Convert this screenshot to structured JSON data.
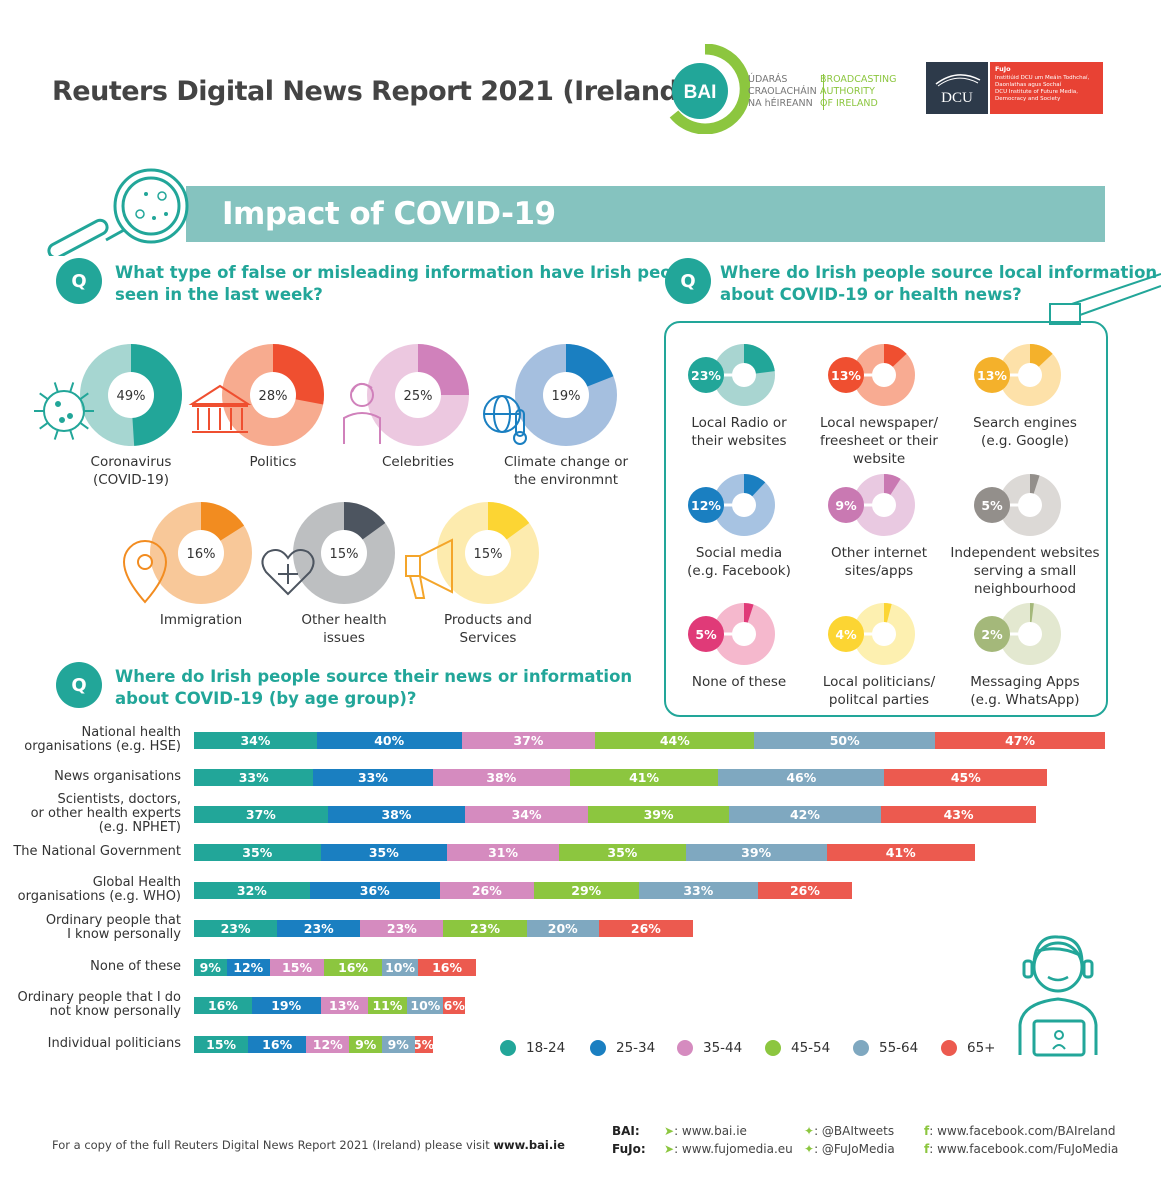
{
  "header": {
    "title": "Reuters Digital News Report 2021 (Ireland)",
    "bai_badge": "BAI",
    "bai_irish": [
      "ÚDARÁS",
      "CRAOLACHÁIN",
      "NA hÉIREANN"
    ],
    "bai_english": [
      "BROADCASTING",
      "AUTHORITY",
      "OF IRELAND"
    ],
    "dcu_label": "DCU",
    "fujo_title": "FuJo",
    "fujo_lines": [
      "Institiúid DCU um Meáin Todhchaí,",
      "Daonlathas agus Sochaí",
      "DCU Institute of Future Media,",
      "Democracy and Society"
    ]
  },
  "banner": {
    "title": "Impact of COVID-19"
  },
  "q1": {
    "badge": "Q",
    "question": [
      "What type of false or misleading information have Irish people",
      "seen in the last week?"
    ]
  },
  "q2": {
    "badge": "Q",
    "question": [
      "Where do Irish people source local information",
      "about COVID-19 or health news?"
    ]
  },
  "q3": {
    "badge": "Q",
    "question": [
      "Where do Irish people source their news or information",
      "about COVID-19 (by age group)?"
    ]
  },
  "colors": {
    "teal": "#22a699",
    "blue": "#1a7fc1",
    "pink": "#d58bbf",
    "green": "#8cc63f",
    "greyblue": "#7fa8c0",
    "red": "#ec5a4f",
    "banner": "#85c3bf"
  },
  "chart_data": [
    {
      "type": "pie",
      "title": "What type of false or misleading information have Irish people seen in the last week?",
      "items": [
        {
          "label": [
            "Coronavirus",
            "(COVID-19)"
          ],
          "value": 49,
          "display": "49%",
          "color": "#22a699",
          "light": "#a6d6d1",
          "icon": "virus-icon"
        },
        {
          "label": [
            "Politics"
          ],
          "value": 28,
          "display": "28%",
          "color": "#ef4f30",
          "light": "#f7ab8f",
          "icon": "government-building-icon"
        },
        {
          "label": [
            "Celebrities"
          ],
          "value": 25,
          "display": "25%",
          "color": "#d081bb",
          "light": "#ecc8e0",
          "icon": "person-icon"
        },
        {
          "label": [
            "Climate change or",
            "the environmnt"
          ],
          "value": 19,
          "display": "19%",
          "color": "#1a7fc1",
          "light": "#a5bfdf",
          "icon": "globe-thermometer-icon"
        },
        {
          "label": [
            "Immigration"
          ],
          "value": 16,
          "display": "16%",
          "color": "#f28c20",
          "light": "#f8c899",
          "icon": "location-pin-icon"
        },
        {
          "label": [
            "Other health",
            "issues"
          ],
          "value": 15,
          "display": "15%",
          "color": "#4d5560",
          "light": "#bdbfc1",
          "icon": "heart-plus-icon"
        },
        {
          "label": [
            "Products and",
            "Services"
          ],
          "value": 15,
          "display": "15%",
          "color": "#fcd533",
          "light": "#fdebae",
          "icon": "megaphone-icon"
        }
      ]
    },
    {
      "type": "pie",
      "title": "Where do Irish people source local information about COVID-19 or health news?",
      "items": [
        {
          "label": [
            "Local Radio or",
            "their websites"
          ],
          "value": 23,
          "display": "23%",
          "color": "#22a699",
          "light": "#a9d5d1"
        },
        {
          "label": [
            "Local newspaper/",
            "freesheet or their",
            "website"
          ],
          "value": 13,
          "display": "13%",
          "color": "#ef4f30",
          "light": "#f8ab92"
        },
        {
          "label": [
            "Search engines",
            "(e.g. Google)"
          ],
          "value": 13,
          "display": "13%",
          "color": "#f4b12b",
          "light": "#fde1a9"
        },
        {
          "label": [
            "Social media",
            "(e.g. Facebook)"
          ],
          "value": 12,
          "display": "12%",
          "color": "#1a7fc1",
          "light": "#a7c3e2"
        },
        {
          "label": [
            "Other internet",
            "sites/apps"
          ],
          "value": 9,
          "display": "9%",
          "color": "#c979b2",
          "light": "#e9c9e1"
        },
        {
          "label": [
            "Independent websites",
            "serving a small",
            "neighbourhood"
          ],
          "value": 5,
          "display": "5%",
          "color": "#938f8b",
          "light": "#dcd9d6"
        },
        {
          "label": [
            "None of these"
          ],
          "value": 5,
          "display": "5%",
          "color": "#e03a78",
          "light": "#f5b8cd"
        },
        {
          "label": [
            "Local politicians/",
            "politcal parties"
          ],
          "value": 4,
          "display": "4%",
          "color": "#fcd533",
          "light": "#fdf0b0"
        },
        {
          "label": [
            "Messaging Apps",
            "(e.g. WhatsApp)"
          ],
          "value": 2,
          "display": "2%",
          "color": "#a4b87a",
          "light": "#e3e8d0"
        }
      ]
    },
    {
      "type": "bar",
      "stacked": true,
      "title": "Where do Irish people source their news or information about COVID-19 (by age group)?",
      "series_names": [
        "18-24",
        "25-34",
        "35-44",
        "45-54",
        "55-64",
        "65+"
      ],
      "series_colors": [
        "#22a699",
        "#1a7fc1",
        "#d58bbf",
        "#8cc63f",
        "#7fa8c0",
        "#ec5a4f"
      ],
      "rows": [
        {
          "label": [
            "National health",
            "organisations (e.g. HSE)"
          ],
          "values": [
            34,
            40,
            37,
            44,
            50,
            47
          ]
        },
        {
          "label": [
            "News organisations"
          ],
          "values": [
            33,
            33,
            38,
            41,
            46,
            45
          ]
        },
        {
          "label": [
            "Scientists, doctors,",
            "or other health experts",
            "(e.g. NPHET)"
          ],
          "values": [
            37,
            38,
            34,
            39,
            42,
            43
          ]
        },
        {
          "label": [
            "The National Government"
          ],
          "values": [
            35,
            35,
            31,
            35,
            39,
            41
          ]
        },
        {
          "label": [
            "Global Health",
            "organisations (e.g. WHO)"
          ],
          "values": [
            32,
            36,
            26,
            29,
            33,
            26
          ]
        },
        {
          "label": [
            "Ordinary people that",
            "I know personally"
          ],
          "values": [
            23,
            23,
            23,
            23,
            20,
            26
          ]
        },
        {
          "label": [
            "None of these"
          ],
          "values": [
            9,
            12,
            15,
            16,
            10,
            16
          ]
        },
        {
          "label": [
            "Ordinary people that I do",
            "not know personally"
          ],
          "values": [
            16,
            19,
            13,
            11,
            10,
            6
          ]
        },
        {
          "label": [
            "Individual politicians"
          ],
          "values": [
            15,
            16,
            12,
            9,
            9,
            5
          ]
        }
      ],
      "value_suffix": "%",
      "legend": "bottom-right"
    }
  ],
  "footer": {
    "prefix": "For a copy of the full Reuters Digital News Report 2021 (Ireland) please visit ",
    "link": "www.bai.ie"
  },
  "social": {
    "rows": [
      {
        "org": "BAI:",
        "web": ": www.bai.ie",
        "twitter": ": @BAItweets",
        "facebook": ": www.facebook.com/BAIreland"
      },
      {
        "org": "FuJo:",
        "web": ": www.fujomedia.eu",
        "twitter": ": @FuJoMedia",
        "facebook": ": www.facebook.com/FuJoMedia"
      }
    ]
  }
}
